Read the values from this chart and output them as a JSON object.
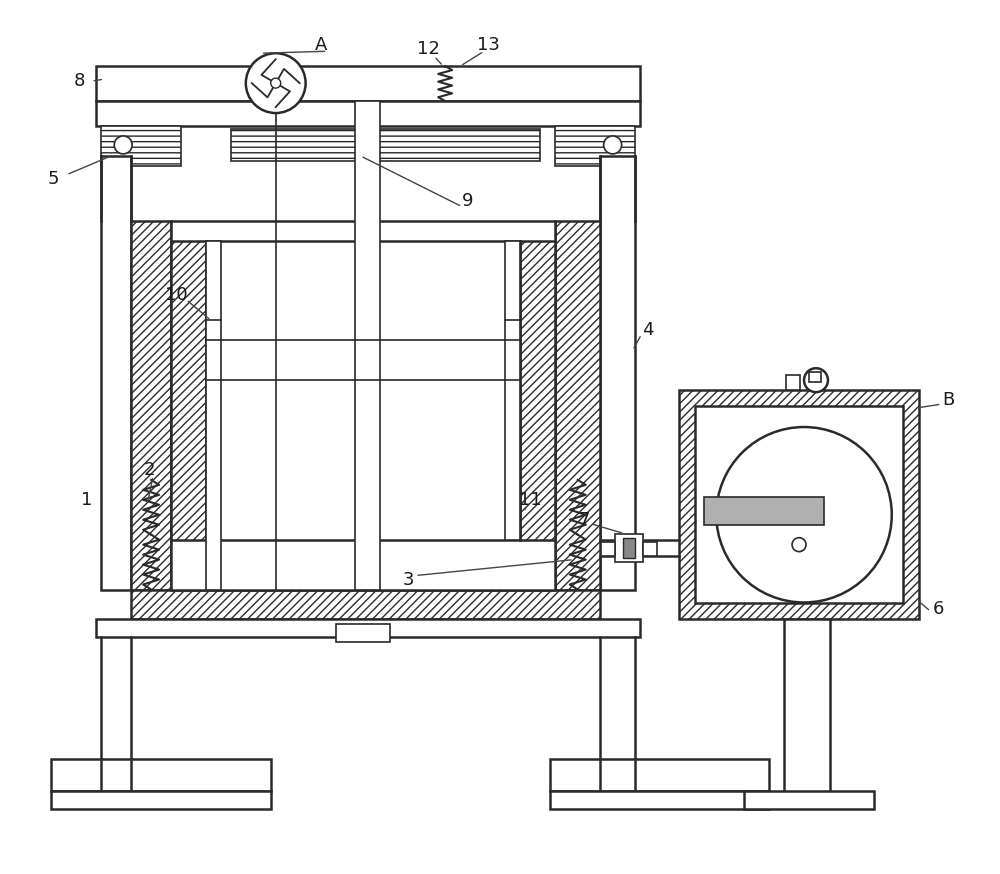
{
  "bg_color": "#ffffff",
  "line_color": "#2a2a2a",
  "figsize": [
    10.0,
    8.74
  ],
  "dpi": 100,
  "lw_main": 1.8,
  "lw_thin": 1.2,
  "lw_label": 1.0
}
